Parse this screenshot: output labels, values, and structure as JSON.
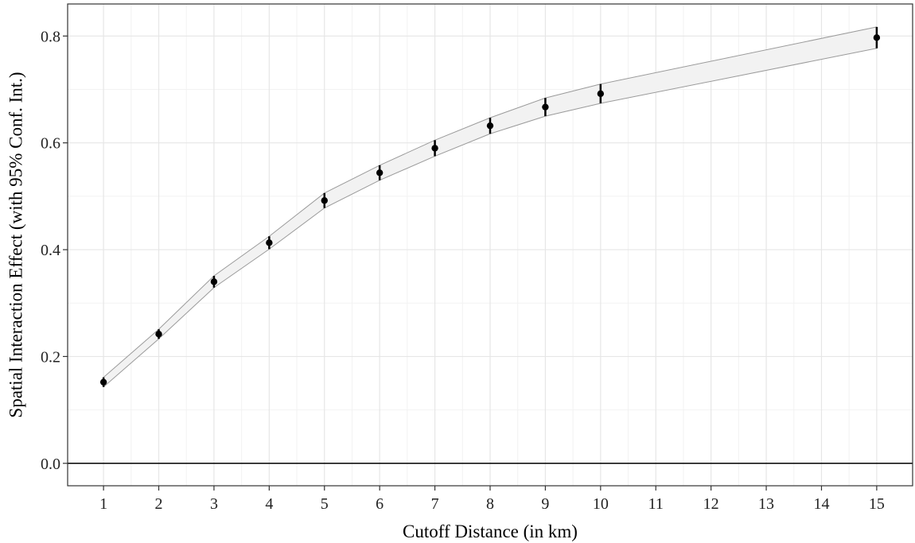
{
  "chart_data": {
    "type": "line",
    "title": "",
    "xlabel": "Cutoff Distance (in km)",
    "ylabel": "Spatial Interaction Effect (with 95% Conf. Int.)",
    "xlim": [
      0.35,
      15.65
    ],
    "ylim": [
      -0.042,
      0.86
    ],
    "x_ticks": [
      1,
      2,
      3,
      4,
      5,
      6,
      7,
      8,
      9,
      10,
      11,
      12,
      13,
      14,
      15
    ],
    "y_ticks": [
      0.0,
      0.2,
      0.4,
      0.6,
      0.8
    ],
    "y_tick_labels": [
      "0.0",
      "0.2",
      "0.4",
      "0.6",
      "0.8"
    ],
    "grid": true,
    "reference_line_y": 0.0,
    "series": [
      {
        "x": [
          1,
          2,
          3,
          4,
          5,
          6,
          7,
          8,
          9,
          10,
          15
        ],
        "y": [
          0.152,
          0.242,
          0.34,
          0.413,
          0.492,
          0.544,
          0.59,
          0.632,
          0.667,
          0.692,
          0.797
        ],
        "lower": [
          0.143,
          0.233,
          0.329,
          0.401,
          0.478,
          0.53,
          0.575,
          0.617,
          0.65,
          0.674,
          0.777
        ],
        "upper": [
          0.161,
          0.251,
          0.351,
          0.425,
          0.506,
          0.558,
          0.605,
          0.647,
          0.684,
          0.71,
          0.817
        ]
      }
    ],
    "colors": {
      "band_fill": "#f2f2f2",
      "band_edge": "#9a9a9a",
      "point": "#000000",
      "grid_major": "#e6e6e6",
      "grid_minor": "#f2f2f2",
      "frame": "#333333"
    }
  }
}
